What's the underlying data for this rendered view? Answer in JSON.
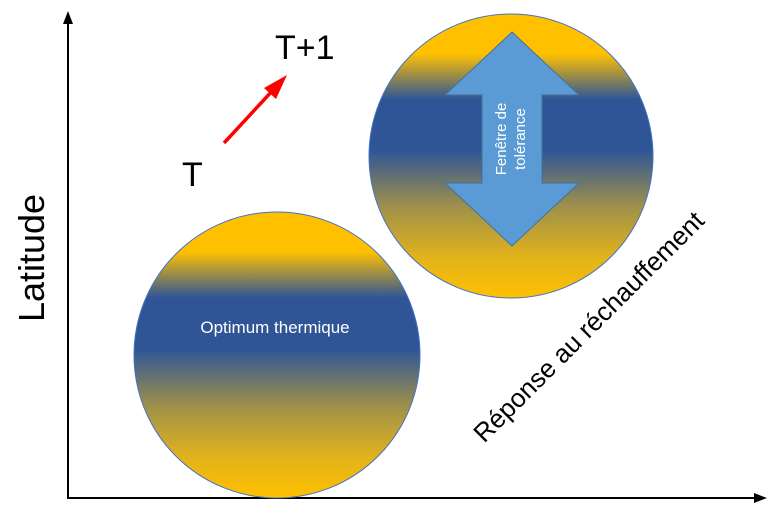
{
  "y_axis": {
    "label": "Latitude"
  },
  "time_labels": {
    "start": "T",
    "end": "T+1"
  },
  "lower_circle": {
    "label": "Optimum thermique"
  },
  "upper_circle": {
    "arrow_label_line1": "Fenêtre de",
    "arrow_label_line2": "tolérance"
  },
  "diagonal_caption": "Réponse au réchauffement",
  "colors": {
    "axis": "#000000",
    "gold": "#FFC000",
    "blue": "#2F5597",
    "arrow_fill": "#5B9BD5",
    "arrow_red": "#FF0000",
    "circle_outline": "#4472C4"
  }
}
